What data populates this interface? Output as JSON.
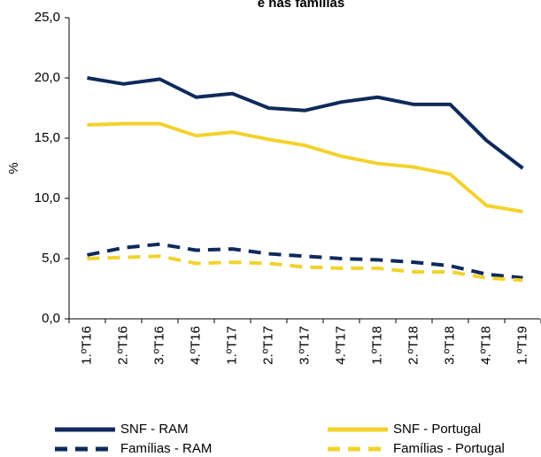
{
  "chart_data": {
    "type": "line",
    "title": "e nas famílias",
    "ylabel": "%",
    "categories": [
      "1.ºT16",
      "2.ºT16",
      "3.ºT16",
      "4.ºT16",
      "1.ºT17",
      "2.ºT17",
      "3.ºT17",
      "4.ºT17",
      "1.ºT18",
      "2.ºT18",
      "3.ºT18",
      "4.ºT18",
      "1.ºT19"
    ],
    "series": [
      {
        "name": "SNF - RAM",
        "color": "#0f2a5a",
        "dashed": false,
        "values": [
          20.0,
          19.5,
          19.9,
          18.4,
          18.7,
          17.5,
          17.3,
          18.0,
          18.4,
          17.8,
          17.8,
          14.8,
          12.5
        ]
      },
      {
        "name": "SNF - Portugal",
        "color": "#f2d22e",
        "dashed": false,
        "values": [
          16.1,
          16.2,
          16.2,
          15.2,
          15.5,
          14.9,
          14.4,
          13.5,
          12.9,
          12.6,
          12.0,
          9.4,
          8.9
        ]
      },
      {
        "name": "Famílias - RAM",
        "color": "#0f2a5a",
        "dashed": true,
        "values": [
          5.3,
          5.9,
          6.2,
          5.7,
          5.8,
          5.4,
          5.2,
          5.0,
          4.9,
          4.7,
          4.4,
          3.7,
          3.4
        ]
      },
      {
        "name": "Famílias - Portugal",
        "color": "#f2d22e",
        "dashed": true,
        "values": [
          5.0,
          5.1,
          5.2,
          4.6,
          4.7,
          4.6,
          4.3,
          4.2,
          4.2,
          3.9,
          3.9,
          3.4,
          3.2
        ]
      }
    ],
    "ylim": [
      0,
      25
    ],
    "yticks": [
      {
        "value": 0,
        "label": "0,0"
      },
      {
        "value": 5,
        "label": "5,0"
      },
      {
        "value": 10,
        "label": "10,0"
      },
      {
        "value": 15,
        "label": "15,0"
      },
      {
        "value": 20,
        "label": "20,0"
      },
      {
        "value": 25,
        "label": "25,0"
      }
    ],
    "grid": false,
    "legend": "bottom"
  }
}
